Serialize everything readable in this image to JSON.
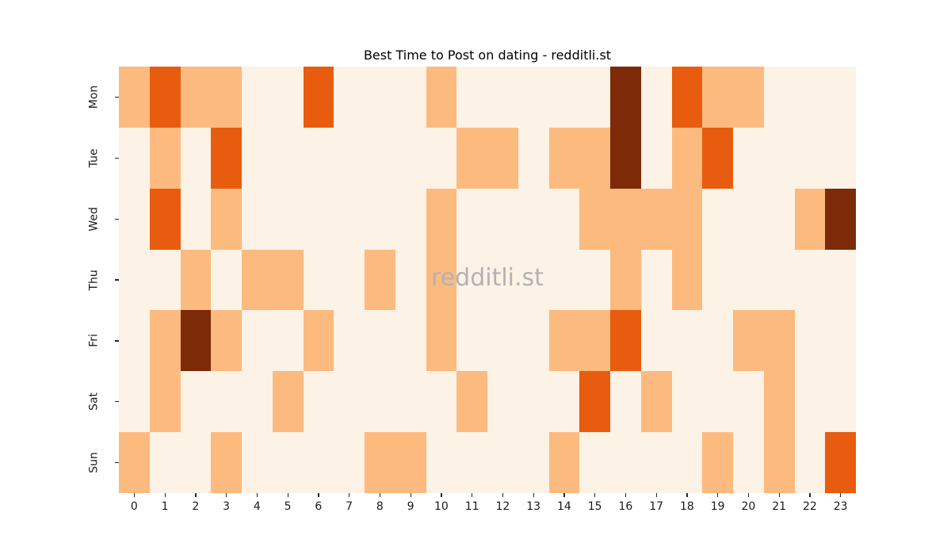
{
  "figure": {
    "background": "#ffffff"
  },
  "watermark": {
    "text": "redditli.st",
    "color": "#b2b2b2"
  },
  "chart_data": {
    "type": "heatmap",
    "title": "Best Time to Post on dating - redditli.st",
    "x_labels": [
      "0",
      "1",
      "2",
      "3",
      "4",
      "5",
      "6",
      "7",
      "8",
      "9",
      "10",
      "11",
      "12",
      "13",
      "14",
      "15",
      "16",
      "17",
      "18",
      "19",
      "20",
      "21",
      "22",
      "23"
    ],
    "y_labels": [
      "Mon",
      "Tue",
      "Wed",
      "Thu",
      "Fri",
      "Sat",
      "Sun"
    ],
    "legend": "none",
    "grid": "off",
    "value_scale_note": "discrete intensity levels 0-3, higher = better time to post",
    "palette": [
      "#fdf2e6",
      "#fdba7f",
      "#e75c0e",
      "#7d2a08"
    ],
    "tick_color": "#262626",
    "label_color": "#1a1a1a",
    "matrix": [
      [
        1,
        2,
        1,
        1,
        0,
        0,
        2,
        0,
        0,
        0,
        1,
        0,
        0,
        0,
        0,
        0,
        3,
        0,
        2,
        1,
        1,
        0,
        0,
        0
      ],
      [
        0,
        1,
        0,
        2,
        0,
        0,
        0,
        0,
        0,
        0,
        0,
        1,
        1,
        0,
        1,
        1,
        3,
        0,
        1,
        2,
        0,
        0,
        0,
        0
      ],
      [
        0,
        2,
        0,
        1,
        0,
        0,
        0,
        0,
        0,
        0,
        1,
        0,
        0,
        0,
        0,
        1,
        1,
        1,
        1,
        0,
        0,
        0,
        1,
        3
      ],
      [
        0,
        0,
        1,
        0,
        1,
        1,
        0,
        0,
        1,
        0,
        1,
        0,
        0,
        0,
        0,
        0,
        1,
        0,
        1,
        0,
        0,
        0,
        0,
        0
      ],
      [
        0,
        1,
        3,
        1,
        0,
        0,
        1,
        0,
        0,
        0,
        1,
        0,
        0,
        0,
        1,
        1,
        2,
        0,
        0,
        0,
        1,
        1,
        0,
        0
      ],
      [
        0,
        1,
        0,
        0,
        0,
        1,
        0,
        0,
        0,
        0,
        0,
        1,
        0,
        0,
        0,
        2,
        0,
        1,
        0,
        0,
        0,
        1,
        0,
        0
      ],
      [
        1,
        0,
        0,
        1,
        0,
        0,
        0,
        0,
        1,
        1,
        0,
        0,
        0,
        0,
        1,
        0,
        0,
        0,
        0,
        1,
        0,
        1,
        0,
        2
      ]
    ]
  }
}
